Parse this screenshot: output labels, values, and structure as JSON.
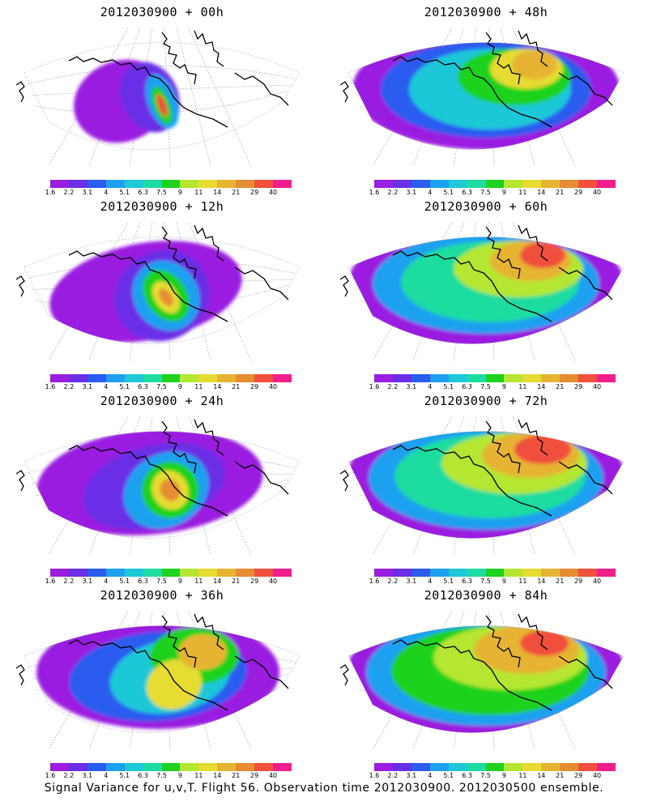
{
  "panels": [
    {
      "title": "2012030900 + 00h",
      "level": 0
    },
    {
      "title": "2012030900 + 48h",
      "level": 4
    },
    {
      "title": "2012030900 + 12h",
      "level": 1
    },
    {
      "title": "2012030900 + 60h",
      "level": 5
    },
    {
      "title": "2012030900 + 24h",
      "level": 2
    },
    {
      "title": "2012030900 + 72h",
      "level": 6
    },
    {
      "title": "2012030900 + 36h",
      "level": 3
    },
    {
      "title": "2012030900 + 84h",
      "level": 7
    }
  ],
  "colorbar": {
    "colors": [
      "#9a1ee0",
      "#6a2ee6",
      "#2a5cf0",
      "#1ea0f0",
      "#1ec8d8",
      "#1edca0",
      "#1ed21e",
      "#b4e632",
      "#e6dc32",
      "#e6b432",
      "#e68c32",
      "#f0503c",
      "#f01e8c"
    ],
    "labels": [
      "1.6",
      "2.2",
      "3.1",
      "4",
      "5.1",
      "6.3",
      "7.5",
      "9",
      "11",
      "14",
      "21",
      "29",
      "40"
    ]
  },
  "footer": "Signal Variance for u,v,T. Flight 56. Observation time 2012030900. 2012030500 ensemble."
}
